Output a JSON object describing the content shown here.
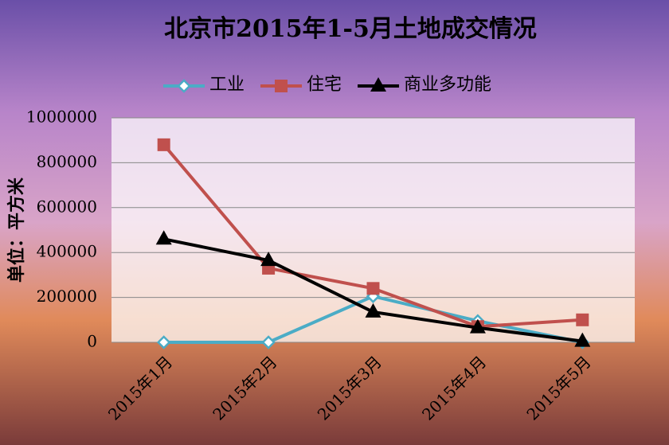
{
  "chart_data": {
    "type": "line",
    "title": "北京市2015年1-5月土地成交情况",
    "y_label": "单位：平方米",
    "categories": [
      "2015年1月",
      "2015年2月",
      "2015年3月",
      "2015年4月",
      "2015年5月"
    ],
    "series": [
      {
        "name": "工业",
        "color": "#4bacc6",
        "marker": "diamond",
        "values": [
          0,
          0,
          205000,
          95000,
          0
        ]
      },
      {
        "name": "住宅",
        "color": "#c0504d",
        "marker": "square",
        "values": [
          880000,
          330000,
          240000,
          70000,
          100000
        ]
      },
      {
        "name": "商业多功能",
        "color": "#000000",
        "marker": "triangle",
        "values": [
          460000,
          365000,
          135000,
          65000,
          5000
        ]
      }
    ],
    "ylim": [
      0,
      1000000
    ],
    "yticks": [
      0,
      200000,
      400000,
      600000,
      800000,
      1000000
    ],
    "grid": true,
    "legend": "top"
  }
}
